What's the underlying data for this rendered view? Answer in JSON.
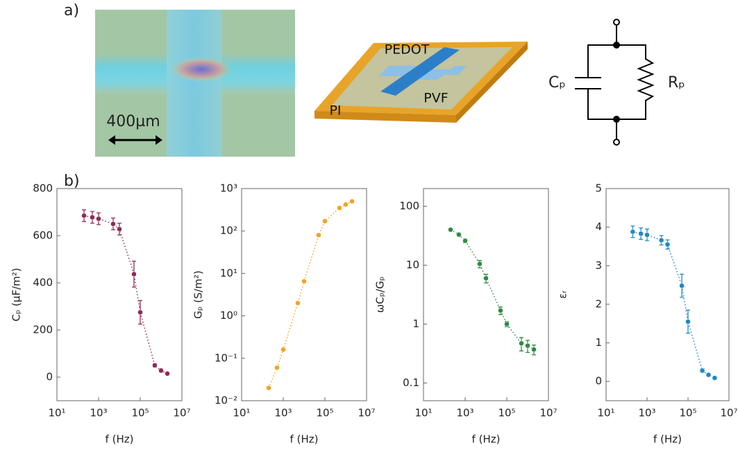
{
  "panel_labels": {
    "a": "a)",
    "b": "b)"
  },
  "micrograph": {
    "scale_bar": "400µm"
  },
  "device": {
    "electrode": "PEDOT",
    "dielectric": "PVF",
    "substrate": "PI"
  },
  "circuit": {
    "capacitor": "Cₚ",
    "resistor": "Rₚ"
  },
  "chart_data": [
    {
      "type": "scatter",
      "xscale": "log",
      "ylabel": "Cₚ (µF/m²)",
      "xlabel": "f (Hz)",
      "x": [
        200,
        500,
        1000,
        5000,
        10000,
        50000,
        100000,
        500000,
        1000000,
        2000000
      ],
      "xlim": [
        10,
        10000000
      ],
      "xticks": [
        {
          "value": 10,
          "label": "10¹"
        },
        {
          "value": 1000,
          "label": "10³"
        },
        {
          "value": 100000,
          "label": "10⁵"
        },
        {
          "value": 10000000,
          "label": "10⁷"
        }
      ],
      "ylim": [
        -100,
        800
      ],
      "yticks": [
        0,
        200,
        400,
        600,
        800
      ],
      "series": [
        {
          "color": "#8e2a56",
          "values": [
            685,
            678,
            672,
            650,
            628,
            437,
            275,
            50,
            28,
            15
          ],
          "errors": [
            25,
            25,
            25,
            25,
            25,
            55,
            50,
            8,
            5,
            5
          ]
        }
      ]
    },
    {
      "type": "scatter",
      "xscale": "log",
      "yscale": "log",
      "ylabel": "Gₚ (S/m²)",
      "xlabel": "f (Hz)",
      "x": [
        200,
        500,
        1000,
        5000,
        10000,
        50000,
        100000,
        500000,
        1000000,
        2000000
      ],
      "xlim": [
        10,
        10000000
      ],
      "xticks": [
        {
          "value": 10,
          "label": "10¹"
        },
        {
          "value": 1000,
          "label": "10³"
        },
        {
          "value": 100000,
          "label": "10⁵"
        },
        {
          "value": 10000000,
          "label": "10⁷"
        }
      ],
      "ylim": [
        0.01,
        1000
      ],
      "yticks": [
        {
          "value": 0.01,
          "label": "10⁻²"
        },
        {
          "value": 0.1,
          "label": "10⁻¹"
        },
        {
          "value": 1,
          "label": "10⁰"
        },
        {
          "value": 10,
          "label": "10¹"
        },
        {
          "value": 100,
          "label": "10²"
        },
        {
          "value": 1000,
          "label": "10³"
        }
      ],
      "series": [
        {
          "color": "#f0a424",
          "values": [
            0.02,
            0.06,
            0.16,
            2,
            6.5,
            80,
            170,
            350,
            420,
            500
          ]
        }
      ]
    },
    {
      "type": "scatter",
      "xscale": "log",
      "yscale": "log",
      "ylabel": "ωCₚ/Gₚ",
      "xlabel": "f (Hz)",
      "x": [
        200,
        500,
        1000,
        5000,
        10000,
        50000,
        100000,
        500000,
        1000000,
        2000000
      ],
      "xlim": [
        10,
        10000000
      ],
      "xticks": [
        {
          "value": 10,
          "label": "10¹"
        },
        {
          "value": 1000,
          "label": "10³"
        },
        {
          "value": 100000,
          "label": "10⁵"
        },
        {
          "value": 10000000,
          "label": "10⁷"
        }
      ],
      "ylim": [
        0.05,
        200
      ],
      "yticks": [
        0.1,
        1,
        10,
        100
      ],
      "series": [
        {
          "color": "#2e8a40",
          "values": [
            40,
            33,
            26,
            10.5,
            6,
            1.7,
            1.0,
            0.47,
            0.43,
            0.37
          ],
          "errors": [
            2,
            2,
            2,
            1.5,
            1,
            0.25,
            0.1,
            0.12,
            0.1,
            0.07
          ]
        }
      ]
    },
    {
      "type": "scatter",
      "xscale": "log",
      "ylabel": "εᵣ",
      "xlabel": "f (Hz)",
      "x": [
        200,
        500,
        1000,
        5000,
        10000,
        50000,
        100000,
        500000,
        1000000,
        2000000
      ],
      "xlim": [
        10,
        10000000
      ],
      "xticks": [
        {
          "value": 10,
          "label": "10¹"
        },
        {
          "value": 1000,
          "label": "10³"
        },
        {
          "value": 100000,
          "label": "10⁵"
        },
        {
          "value": 10000000,
          "label": "10⁷"
        }
      ],
      "ylim": [
        -0.5,
        5
      ],
      "yticks": [
        0,
        1,
        2,
        3,
        4,
        5
      ],
      "series": [
        {
          "color": "#2088c6",
          "values": [
            3.88,
            3.83,
            3.8,
            3.66,
            3.55,
            2.48,
            1.55,
            0.28,
            0.17,
            0.09
          ],
          "errors": [
            0.15,
            0.15,
            0.15,
            0.12,
            0.12,
            0.3,
            0.3,
            0.05,
            0.03,
            0.02
          ]
        }
      ]
    }
  ]
}
